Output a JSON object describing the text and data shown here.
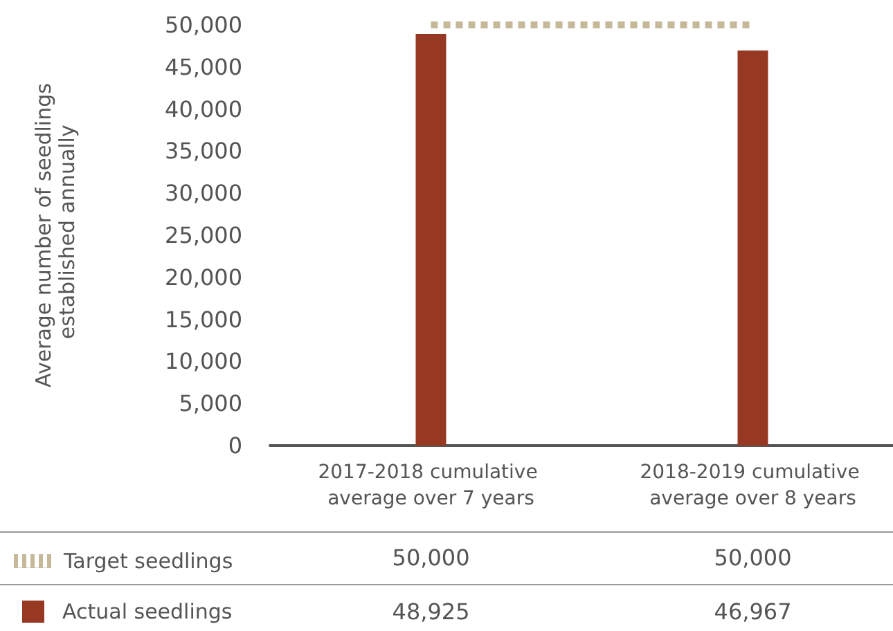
{
  "chart_data": {
    "type": "bar",
    "ylabel": "Average number of seedlings established annually",
    "categories": [
      "2017-2018 cumulative average over 7 years",
      "2018-2019 cumulative average over 8 years"
    ],
    "series": [
      {
        "name": "Target seedlings",
        "type": "line",
        "color": "#c5b99a",
        "values": [
          50000,
          50000
        ],
        "value_labels": [
          "50,000",
          "50,000"
        ]
      },
      {
        "name": "Actual seedlings",
        "color": "#973822",
        "values": [
          48925,
          46967
        ],
        "value_labels": [
          "48,925",
          "46,967"
        ]
      }
    ],
    "ylim": [
      0,
      50000
    ],
    "yticks": [
      {
        "value": 0,
        "label": "0"
      },
      {
        "value": 5000,
        "label": "5,000"
      },
      {
        "value": 10000,
        "label": "10,000"
      },
      {
        "value": 15000,
        "label": "15,000"
      },
      {
        "value": 20000,
        "label": "20,000"
      },
      {
        "value": 25000,
        "label": "25,000"
      },
      {
        "value": 30000,
        "label": "30,000"
      },
      {
        "value": 35000,
        "label": "35,000"
      },
      {
        "value": 40000,
        "label": "40,000"
      },
      {
        "value": 45000,
        "label": "45,000"
      },
      {
        "value": 50000,
        "label": "50,000"
      }
    ],
    "line_style": "dotted",
    "marker": "none",
    "legend": "bottom left"
  }
}
